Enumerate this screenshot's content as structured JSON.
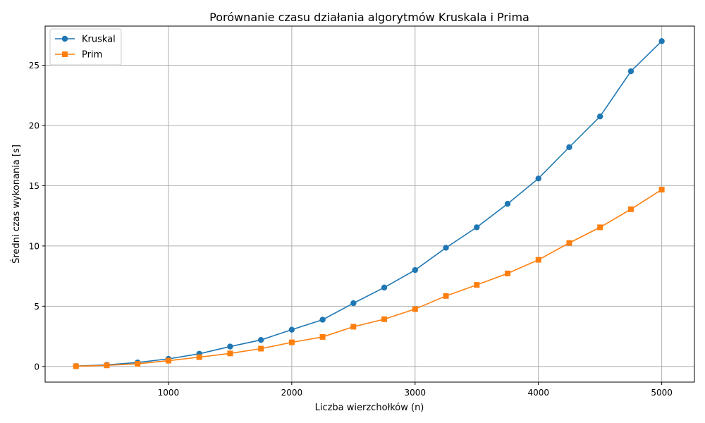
{
  "chart_data": {
    "type": "line",
    "title": "Porównanie czasu działania algorytmów Kruskala i Prima",
    "xlabel": "Liczba wierzchołków (n)",
    "ylabel": "Średni czas wykonania [s]",
    "xlim": [
      0,
      5265
    ],
    "ylim": [
      -1.3,
      28.25
    ],
    "xticks": [
      1000,
      2000,
      3000,
      4000,
      5000
    ],
    "yticks": [
      0,
      5,
      10,
      15,
      20,
      25
    ],
    "grid": true,
    "legend": "top-left",
    "x": [
      250,
      500,
      750,
      1000,
      1250,
      1500,
      1750,
      2000,
      2250,
      2500,
      2750,
      3000,
      3250,
      3500,
      3750,
      4000,
      4250,
      4500,
      4750,
      5000
    ],
    "series": [
      {
        "name": "Kruskal",
        "color": "#1f77b4",
        "marker": "circle",
        "values": [
          0.03,
          0.13,
          0.33,
          0.63,
          1.05,
          1.65,
          2.2,
          3.05,
          3.88,
          5.25,
          6.55,
          8.0,
          9.85,
          11.55,
          13.5,
          15.6,
          18.2,
          20.75,
          24.5,
          27.0
        ]
      },
      {
        "name": "Prim",
        "color": "#ff7f0e",
        "marker": "square",
        "values": [
          0.02,
          0.09,
          0.22,
          0.48,
          0.77,
          1.08,
          1.48,
          2.0,
          2.45,
          3.3,
          3.92,
          4.76,
          5.85,
          6.77,
          7.72,
          8.85,
          10.25,
          11.55,
          13.05,
          14.68
        ]
      }
    ]
  }
}
